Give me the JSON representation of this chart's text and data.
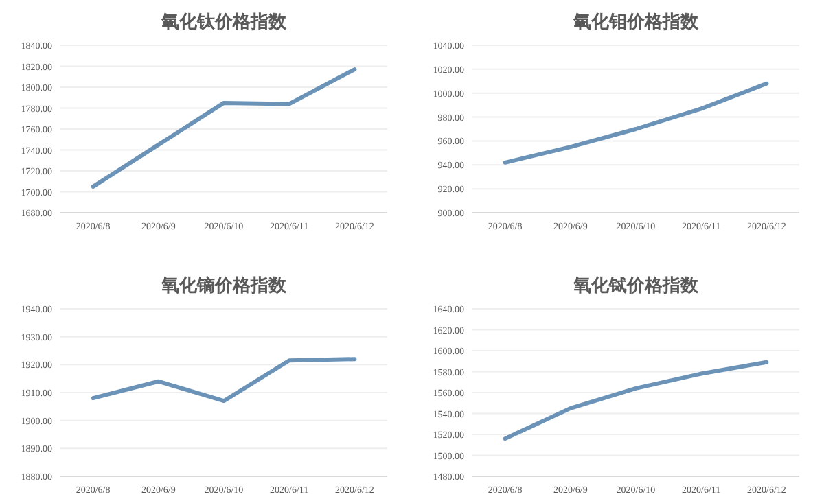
{
  "chart_data": [
    {
      "type": "line",
      "title": "氧化钛价格指数",
      "categories": [
        "2020/6/8",
        "2020/6/9",
        "2020/6/10",
        "2020/6/11",
        "2020/6/12"
      ],
      "series": [
        {
          "color": "#6b93b8",
          "values": [
            1705,
            1745,
            1785,
            1784,
            1817
          ]
        }
      ],
      "ylim": [
        1680,
        1840
      ],
      "yticks": [
        {
          "value": 1680,
          "label": "1680.00"
        },
        {
          "value": 1700,
          "label": "1700.00"
        },
        {
          "value": 1720,
          "label": "1720.00"
        },
        {
          "value": 1740,
          "label": "1740.00"
        },
        {
          "value": 1760,
          "label": "1760.00"
        },
        {
          "value": 1780,
          "label": "1780.00"
        },
        {
          "value": 1800,
          "label": "1800.00"
        },
        {
          "value": 1820,
          "label": "1820.00"
        },
        {
          "value": 1840,
          "label": "1840.00"
        }
      ],
      "grid": "y"
    },
    {
      "type": "line",
      "title": "氧化钼价格指数",
      "categories": [
        "2020/6/8",
        "2020/6/9",
        "2020/6/10",
        "2020/6/11",
        "2020/6/12"
      ],
      "series": [
        {
          "color": "#6b93b8",
          "values": [
            942,
            955,
            970,
            987,
            1008
          ]
        }
      ],
      "ylim": [
        900,
        1040
      ],
      "yticks": [
        {
          "value": 900,
          "label": "900.00"
        },
        {
          "value": 920,
          "label": "920.00"
        },
        {
          "value": 940,
          "label": "940.00"
        },
        {
          "value": 960,
          "label": "960.00"
        },
        {
          "value": 980,
          "label": "980.00"
        },
        {
          "value": 1000,
          "label": "1000.00"
        },
        {
          "value": 1020,
          "label": "1020.00"
        },
        {
          "value": 1040,
          "label": "1040.00"
        }
      ],
      "grid": "y"
    },
    {
      "type": "line",
      "title": "氧化镝价格指数",
      "categories": [
        "2020/6/8",
        "2020/6/9",
        "2020/6/10",
        "2020/6/11",
        "2020/6/12"
      ],
      "series": [
        {
          "color": "#6b93b8",
          "values": [
            1908,
            1914,
            1907,
            1921.5,
            1922
          ]
        }
      ],
      "ylim": [
        1880,
        1940
      ],
      "yticks": [
        {
          "value": 1880,
          "label": "1880.00"
        },
        {
          "value": 1890,
          "label": "1890.00"
        },
        {
          "value": 1900,
          "label": "1900.00"
        },
        {
          "value": 1910,
          "label": "1910.00"
        },
        {
          "value": 1920,
          "label": "1920.00"
        },
        {
          "value": 1930,
          "label": "1930.00"
        },
        {
          "value": 1940,
          "label": "1940.00"
        }
      ],
      "grid": "y"
    },
    {
      "type": "line",
      "title": "氧化铽价格指数",
      "categories": [
        "2020/6/8",
        "2020/6/9",
        "2020/6/10",
        "2020/6/11",
        "2020/6/12"
      ],
      "series": [
        {
          "color": "#6b93b8",
          "values": [
            1516,
            1545,
            1564,
            1578,
            1589
          ]
        }
      ],
      "ylim": [
        1480,
        1640
      ],
      "yticks": [
        {
          "value": 1480,
          "label": "1480.00"
        },
        {
          "value": 1500,
          "label": "1500.00"
        },
        {
          "value": 1520,
          "label": "1520.00"
        },
        {
          "value": 1540,
          "label": "1540.00"
        },
        {
          "value": 1560,
          "label": "1560.00"
        },
        {
          "value": 1580,
          "label": "1580.00"
        },
        {
          "value": 1600,
          "label": "1600.00"
        },
        {
          "value": 1620,
          "label": "1620.00"
        },
        {
          "value": 1640,
          "label": "1640.00"
        }
      ],
      "grid": "y"
    }
  ]
}
